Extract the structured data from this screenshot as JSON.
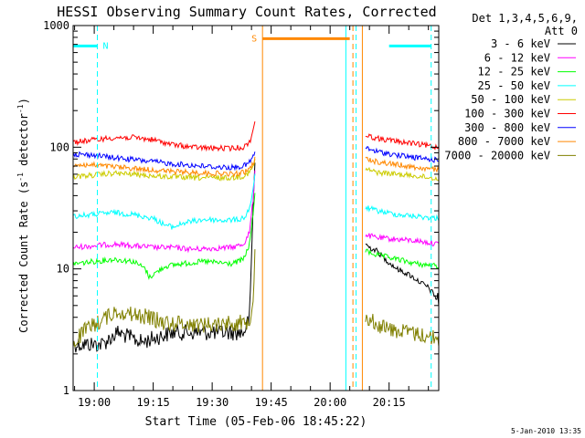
{
  "chart_data": {
    "type": "line",
    "title": "HESSI Observing Summary Count Rates, Corrected",
    "xlabel": "Start Time (05-Feb-06 18:45:22)",
    "ylabel_main": "Corrected Count Rate (s",
    "ylabel_sup1": "-1",
    "ylabel_mid": " detector",
    "ylabel_sup2": "-1",
    "ylabel_end": ")",
    "y_scale": "log",
    "ylim": [
      1,
      1000
    ],
    "yticks": [
      {
        "value": 1,
        "label": "1"
      },
      {
        "value": 10,
        "label": "10"
      },
      {
        "value": 100,
        "label": "100"
      },
      {
        "value": 1000,
        "label": "1000"
      }
    ],
    "xlim_minutes": [
      -5.37,
      87.63
    ],
    "xticks": [
      {
        "minutes": 0,
        "label": "19:00"
      },
      {
        "minutes": 15,
        "label": "19:15"
      },
      {
        "minutes": 30,
        "label": "19:30"
      },
      {
        "minutes": 45,
        "label": "19:45"
      },
      {
        "minutes": 60,
        "label": "20:00"
      },
      {
        "minutes": 75,
        "label": "20:15"
      }
    ],
    "legend_header": [
      "Det 1,3,4,5,6,9,",
      "Att 0"
    ],
    "legend_placement": "top-right, outside plot",
    "series": [
      {
        "name": "3 - 6 keV",
        "color": "#000000",
        "segments": [
          {
            "x": [
              -5.4,
              2,
              6,
              12,
              20,
              28,
              38,
              39.5,
              40.5,
              41
            ],
            "y": [
              2.4,
              2.4,
              3.0,
              2.5,
              3.0,
              3.0,
              3.0,
              4,
              40,
              95
            ]
          },
          {
            "x": [
              69,
              70,
              72,
              74,
              77,
              80,
              85,
              87.6
            ],
            "y": [
              16,
              15,
              14,
              12,
              10,
              9,
              7,
              5.5
            ]
          }
        ]
      },
      {
        "name": "6 - 12 keV",
        "color": "#ff00ff",
        "segments": [
          {
            "x": [
              -5.4,
              0,
              5,
              10,
              15,
              20,
              25,
              35,
              38,
              39.5,
              40.5,
              41
            ],
            "y": [
              15,
              15.5,
              16,
              15.5,
              15,
              15,
              14.5,
              15,
              16,
              20,
              40,
              80
            ]
          },
          {
            "x": [
              69,
              72,
              77,
              82,
              87.6
            ],
            "y": [
              19,
              18,
              17.5,
              17,
              16
            ]
          }
        ]
      },
      {
        "name": "12 - 25 keV",
        "color": "#00ff00",
        "segments": [
          {
            "x": [
              -5.4,
              0,
              5,
              10,
              13,
              14,
              15,
              18,
              22,
              28,
              35,
              38,
              39.5,
              40.5,
              41
            ],
            "y": [
              11,
              11.5,
              12,
              11.5,
              10,
              8.5,
              9,
              10.5,
              11,
              11.5,
              11,
              12,
              16,
              30,
              50
            ]
          },
          {
            "x": [
              69,
              72,
              77,
              82,
              87.6
            ],
            "y": [
              14,
              13,
              12,
              11,
              10.5
            ]
          }
        ]
      },
      {
        "name": "25 - 50 keV",
        "color": "#00ffff",
        "segments": [
          {
            "x": [
              -5.4,
              0,
              5,
              10,
              15,
              18,
              20,
              23,
              28,
              33,
              37,
              38.5,
              39.5,
              40.5,
              41
            ],
            "y": [
              27,
              28,
              29,
              28,
              26,
              23,
              22,
              24,
              25.5,
              25,
              25.5,
              27,
              32,
              45,
              65
            ]
          },
          {
            "x": [
              69,
              72,
              77,
              82,
              87.6
            ],
            "y": [
              32,
              30,
              28,
              27,
              26
            ]
          }
        ]
      },
      {
        "name": "50 - 100 keV",
        "color": "#cccc00",
        "segments": [
          {
            "x": [
              -5.4,
              0,
              5,
              10,
              15,
              20,
              25,
              30,
              35,
              38,
              39.5,
              40.5,
              41
            ],
            "y": [
              57,
              59,
              61,
              60,
              58,
              57,
              56,
              56,
              56,
              58,
              62,
              70,
              80
            ]
          },
          {
            "x": [
              69,
              72,
              77,
              82,
              87.6
            ],
            "y": [
              66,
              62,
              60,
              58,
              55
            ]
          }
        ]
      },
      {
        "name": "100 - 300 keV",
        "color": "#ff0000",
        "segments": [
          {
            "x": [
              -5.4,
              0,
              5,
              10,
              15,
              20,
              25,
              30,
              35,
              38,
              39.5,
              40.5,
              41
            ],
            "y": [
              110,
              115,
              120,
              120,
              115,
              105,
              100,
              98,
              98,
              100,
              110,
              140,
              180
            ]
          },
          {
            "x": [
              69,
              72,
              77,
              82,
              87.6
            ],
            "y": [
              125,
              118,
              112,
              106,
              100
            ]
          }
        ]
      },
      {
        "name": "300 - 800 keV",
        "color": "#0000ff",
        "segments": [
          {
            "x": [
              -5.4,
              0,
              5,
              10,
              15,
              20,
              25,
              30,
              35,
              38,
              39.5,
              40.5,
              41
            ],
            "y": [
              88,
              86,
              82,
              79,
              76,
              73,
              71,
              69,
              68,
              70,
              75,
              85,
              95
            ]
          },
          {
            "x": [
              69,
              72,
              77,
              82,
              87.6
            ],
            "y": [
              98,
              92,
              86,
              82,
              78
            ]
          }
        ]
      },
      {
        "name": "800 - 7000 keV",
        "color": "#ff8800",
        "segments": [
          {
            "x": [
              -5.4,
              0,
              5,
              10,
              15,
              20,
              25,
              30,
              35,
              38,
              39.5,
              40.5,
              41
            ],
            "y": [
              72,
              71,
              69,
              67,
              65,
              63,
              62,
              61,
              60,
              62,
              66,
              75,
              85
            ]
          },
          {
            "x": [
              69,
              72,
              77,
              82,
              87.6
            ],
            "y": [
              80,
              76,
              72,
              68,
              65
            ]
          }
        ]
      },
      {
        "name": "7000 - 20000 keV",
        "color": "#808000",
        "segments": [
          {
            "x": [
              -5.4,
              -3,
              0,
              3,
              6,
              10,
              14,
              18,
              22,
              26,
              30,
              34,
              38,
              39.5,
              40.5,
              41
            ],
            "y": [
              2.4,
              3,
              3.5,
              4,
              4.5,
              4.2,
              4,
              3.6,
              3.6,
              3.5,
              3.5,
              3.6,
              3.6,
              3.8,
              6,
              20
            ]
          },
          {
            "x": [
              69,
              72,
              75,
              80,
              85,
              87.6
            ],
            "y": [
              4,
              3.5,
              3.2,
              3.0,
              2.8,
              2.6
            ]
          }
        ]
      }
    ],
    "attenuator_bars": [
      {
        "label": "N",
        "color": "#00ffff",
        "x_start_minutes": -5.4,
        "x_end_minutes": 0.8,
        "y": 680
      },
      {
        "label": "S",
        "color": "#ff8800",
        "x_start_minutes": 42.8,
        "x_end_minutes": 65.0,
        "y": 780
      },
      {
        "label": "",
        "color": "#00ffff",
        "x_start_minutes": 75.0,
        "x_end_minutes": 85.7,
        "y": 680
      }
    ],
    "vertical_markers": [
      {
        "minutes": 0.8,
        "color": "#00ffff",
        "style": "dashed"
      },
      {
        "minutes": 42.8,
        "color": "#ff8800",
        "style": "solid"
      },
      {
        "minutes": 64.0,
        "color": "#00ffff",
        "style": "solid"
      },
      {
        "minutes": 65.8,
        "color": "#ff8800",
        "style": "dashed"
      },
      {
        "minutes": 66.6,
        "color": "#00ffff",
        "style": "dashed"
      },
      {
        "minutes": 68.2,
        "color": "#ff8800",
        "style": "solid"
      },
      {
        "minutes": 85.7,
        "color": "#00ffff",
        "style": "dashed"
      }
    ],
    "footer_date": "5-Jan-2010 13:35"
  }
}
